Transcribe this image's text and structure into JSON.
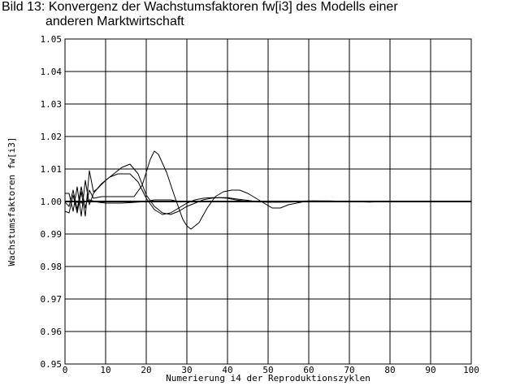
{
  "title": {
    "line1": "Bild 13: Konvergenz der Wachstumsfaktoren fw[i3] des Modells einer",
    "line2": "anderen Marktwirtschaft"
  },
  "chart_data": {
    "type": "line",
    "title": "Bild 13: Konvergenz der Wachstumsfaktoren fw[i3] des Modells einer anderen Marktwirtschaft",
    "xlabel": "Numerierung i4 der Reproduktionszyklen",
    "ylabel": "Wachstumsfaktoren fw[i3]",
    "xlim": [
      0,
      100
    ],
    "ylim": [
      0.95,
      1.05
    ],
    "grid": true,
    "legend": "none",
    "line_color": "#000000",
    "x_ticks": [
      "0",
      "10",
      "20",
      "30",
      "40",
      "50",
      "60",
      "70",
      "80",
      "90",
      "100"
    ],
    "y_ticks": [
      "0.95",
      "0.96",
      "0.97",
      "0.98",
      "0.99",
      "1.00",
      "1.01",
      "1.02",
      "1.03",
      "1.04",
      "1.05"
    ],
    "series": [
      {
        "x": [
          0,
          1,
          2,
          3,
          4,
          5,
          6,
          7,
          9,
          11,
          13,
          15,
          17,
          19,
          20,
          21,
          22,
          23,
          25,
          27,
          29,
          30,
          31,
          33,
          35,
          37,
          39,
          41,
          43,
          45,
          47,
          49,
          51,
          53,
          55,
          57,
          59,
          61,
          65,
          70,
          75,
          80,
          100
        ],
        "values": [
          0.9998,
          0.9985,
          1.0035,
          0.9975,
          1.0045,
          0.998,
          1.0035,
          1.001,
          1.0015,
          1.0015,
          1.0015,
          1.0015,
          1.0015,
          1.005,
          1.009,
          1.013,
          1.0155,
          1.0145,
          1.009,
          1.0015,
          0.9945,
          0.9925,
          0.9915,
          0.9935,
          0.998,
          1.0015,
          1.003,
          1.0035,
          1.0035,
          1.0025,
          1.001,
          0.9995,
          0.998,
          0.998,
          0.999,
          0.9995,
          1.0,
          1.0002,
          1.0002,
          1.0,
          1.0,
          1.0,
          1.0
        ]
      },
      {
        "x": [
          0,
          1,
          2,
          3,
          4,
          5,
          6,
          7,
          8,
          10,
          12,
          14,
          16,
          18,
          20,
          22,
          24,
          26,
          28,
          30,
          32,
          34,
          36,
          38,
          40,
          42,
          44,
          46,
          48,
          50,
          55,
          60,
          100
        ],
        "values": [
          0.997,
          0.9965,
          1.002,
          0.9965,
          1.003,
          0.9955,
          1.0095,
          1.003,
          1.004,
          1.0065,
          1.0085,
          1.0105,
          1.0115,
          1.0085,
          1.002,
          0.9985,
          0.9965,
          0.996,
          0.997,
          0.9985,
          0.9995,
          1.0005,
          1.001,
          1.0012,
          1.0012,
          1.0008,
          1.0005,
          1.0002,
          1.0,
          0.9998,
          0.9998,
          1.0,
          1.0
        ]
      },
      {
        "x": [
          0,
          1,
          2,
          3,
          4,
          5,
          6,
          7,
          9,
          11,
          13,
          15,
          16,
          18,
          20,
          22,
          24,
          26,
          28,
          30,
          32,
          34,
          36,
          38,
          40,
          42,
          44,
          46,
          48,
          52,
          60,
          70,
          100
        ],
        "values": [
          1.0025,
          1.0025,
          0.997,
          1.0045,
          0.9955,
          1.0065,
          0.999,
          1.0025,
          1.0055,
          1.0075,
          1.0085,
          1.0085,
          1.0085,
          1.006,
          1.001,
          0.9975,
          0.996,
          0.9965,
          0.998,
          0.9995,
          1.0005,
          1.001,
          1.0012,
          1.0012,
          1.001,
          1.0005,
          1.0002,
          1.0,
          1.0,
          0.9998,
          1.0,
          1.0,
          1.0
        ]
      },
      {
        "x": [
          0,
          2,
          4,
          6,
          8,
          10,
          14,
          18,
          20,
          22,
          24,
          26,
          28,
          32,
          36,
          40,
          50,
          60,
          70,
          75,
          78,
          80,
          100
        ],
        "values": [
          1.0,
          1.0,
          0.9995,
          1.0005,
          0.9998,
          0.9995,
          0.9995,
          0.9998,
          1.0,
          1.0005,
          1.0005,
          1.0005,
          1.0,
          1.0,
          1.0,
          1.0,
          0.9998,
          1.0002,
          1.0,
          0.9998,
          1.0,
          1.0,
          1.0
        ]
      }
    ]
  }
}
